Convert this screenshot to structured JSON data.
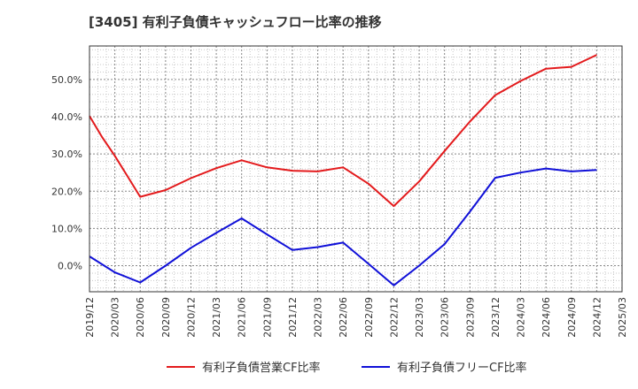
{
  "chart_data": {
    "type": "line",
    "title": "[3405]  有利子負債キャッシュフロー比率の推移",
    "xlabel": "",
    "ylabel": "",
    "x_tick_labels": [
      "2019/12",
      "2020/03",
      "2020/06",
      "2020/09",
      "2020/12",
      "2021/03",
      "2021/06",
      "2021/09",
      "2021/12",
      "2022/03",
      "2022/06",
      "2022/09",
      "2022/12",
      "2023/03",
      "2023/06",
      "2023/09",
      "2023/12",
      "2024/03",
      "2024/06",
      "2024/09",
      "2024/12",
      "2025/03"
    ],
    "y_tick_labels": [
      "0.0%",
      "10.0%",
      "20.0%",
      "30.0%",
      "40.0%",
      "50.0%"
    ],
    "y_ticks": [
      0,
      10,
      20,
      30,
      40,
      50
    ],
    "ylim": [
      -7,
      59
    ],
    "grid": true,
    "legend_position": "bottom",
    "series": [
      {
        "name": "有利子負債営業CF比率",
        "color": "#e31a1c",
        "points": [
          [
            0,
            40.2
          ],
          [
            0.5,
            34.5
          ],
          [
            1,
            29.5
          ],
          [
            1.5,
            24.0
          ],
          [
            2,
            18.5
          ],
          [
            3,
            20.3
          ],
          [
            4,
            23.5
          ],
          [
            5,
            26.2
          ],
          [
            6,
            28.3
          ],
          [
            7,
            26.4
          ],
          [
            8,
            25.5
          ],
          [
            9,
            25.3
          ],
          [
            10,
            26.4
          ],
          [
            11,
            22.0
          ],
          [
            12,
            16.0
          ],
          [
            13,
            22.6
          ],
          [
            14,
            30.8
          ],
          [
            15,
            38.7
          ],
          [
            16,
            45.8
          ],
          [
            17,
            49.6
          ],
          [
            18,
            52.9
          ],
          [
            19,
            53.4
          ],
          [
            20,
            56.6
          ]
        ]
      },
      {
        "name": "有利子負債フリーCF比率",
        "color": "#1010d8",
        "points": [
          [
            0,
            2.5
          ],
          [
            1,
            -1.8
          ],
          [
            2,
            -4.5
          ],
          [
            3,
            0.0
          ],
          [
            4,
            4.8
          ],
          [
            5,
            8.8
          ],
          [
            6,
            12.7
          ],
          [
            7,
            8.4
          ],
          [
            8,
            4.2
          ],
          [
            9,
            5.0
          ],
          [
            10,
            6.2
          ],
          [
            11,
            0.5
          ],
          [
            12,
            -5.3
          ],
          [
            13,
            0.0
          ],
          [
            14,
            5.8
          ],
          [
            15,
            14.5
          ],
          [
            16,
            23.6
          ],
          [
            17,
            25.0
          ],
          [
            18,
            26.1
          ],
          [
            19,
            25.3
          ],
          [
            20,
            25.7
          ]
        ]
      }
    ]
  }
}
